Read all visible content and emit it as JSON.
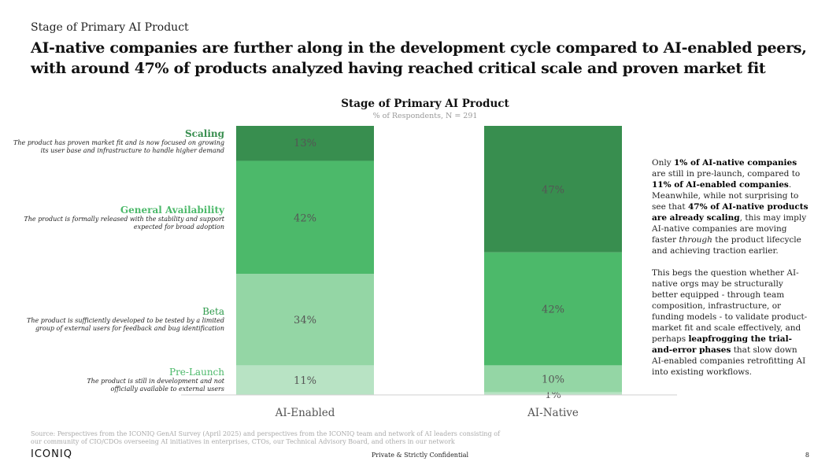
{
  "header": {
    "eyebrow": "Stage of Primary AI Product",
    "headline": "AI-native companies are further along in the development cycle compared to AI-enabled peers, with around 47% of products analyzed having reached critical scale and proven market fit"
  },
  "legend": [
    {
      "title": "Scaling",
      "desc_line1": "The product has proven market fit and is now focused on growing",
      "desc_line2": "its user base and infrastructure to handle higher demand",
      "color": "#388e4f"
    },
    {
      "title": "General Availability",
      "desc_line1": "The product is formally released with the stability and support",
      "desc_line2": "expected for broad adoption",
      "color": "#4cb96a"
    },
    {
      "title": "Beta",
      "desc_line1": "The product is sufficiently developed to be tested by a limited",
      "desc_line2": "group of external users for feedback and bug identification",
      "color": "#2e9a4b"
    },
    {
      "title": "Pre-Launch",
      "desc_line1": "The product is still in development and not",
      "desc_line2": "officially available to external users",
      "color": "#4cb96a"
    }
  ],
  "chart_data": {
    "type": "bar",
    "stacked": true,
    "title": "Stage of Primary AI Product",
    "subtitle": "% of Respondents, N = 291",
    "categories": [
      "AI-Enabled",
      "AI-Native"
    ],
    "series": [
      {
        "name": "Pre-Launch",
        "values": [
          11,
          1
        ],
        "labels": [
          "11%",
          "1%"
        ],
        "color": "#b8e3c4"
      },
      {
        "name": "Beta",
        "values": [
          34,
          10
        ],
        "labels": [
          "34%",
          "10%"
        ],
        "color": "#94d6a5"
      },
      {
        "name": "General Availability",
        "values": [
          42,
          42
        ],
        "labels": [
          "42%",
          "42%"
        ],
        "color": "#4cb96a"
      },
      {
        "name": "Scaling",
        "values": [
          13,
          47
        ],
        "labels": [
          "13%",
          "47%"
        ],
        "color": "#388e4f"
      }
    ],
    "ylim": [
      0,
      100
    ],
    "xlabel": "",
    "ylabel": ""
  },
  "callout": {
    "p1": [
      {
        "t": "Only ",
        "b": false
      },
      {
        "t": "1% of AI-native companies",
        "b": true
      },
      {
        "t": " are still in pre-launch, compared to ",
        "b": false
      },
      {
        "t": "11% of AI-enabled companies",
        "b": true
      },
      {
        "t": ". Meanwhile, while not surprising to see that ",
        "b": false
      },
      {
        "t": "47% of AI-native products are already scaling",
        "b": true
      },
      {
        "t": ", this may imply AI-native companies are moving faster ",
        "b": false
      },
      {
        "t": "through",
        "b": false,
        "i": true
      },
      {
        "t": " the product lifecycle and achieving traction earlier.",
        "b": false
      }
    ],
    "p2": [
      {
        "t": "This begs the question whether AI-native orgs may be structurally better equipped - through team composition, infrastructure, or funding models - to validate product-market fit and scale effectively, and perhaps ",
        "b": false
      },
      {
        "t": "leapfrogging the trial-and-error phases",
        "b": true
      },
      {
        "t": " that slow down AI-enabled companies retrofitting AI into existing workflows.",
        "b": false
      }
    ]
  },
  "footer": {
    "source": "Source: Perspectives from the ICONIQ GenAI Survey (April 2025) and perspectives from the ICONIQ team and network of AI leaders consisting of our community of CIO/CDOs overseeing AI initiatives in enterprises, CTOs, our Technical Advisory Board, and others in our network",
    "logo": "ICONIQ",
    "confidential": "Private & Strictly Confidential",
    "page_number": "8"
  }
}
